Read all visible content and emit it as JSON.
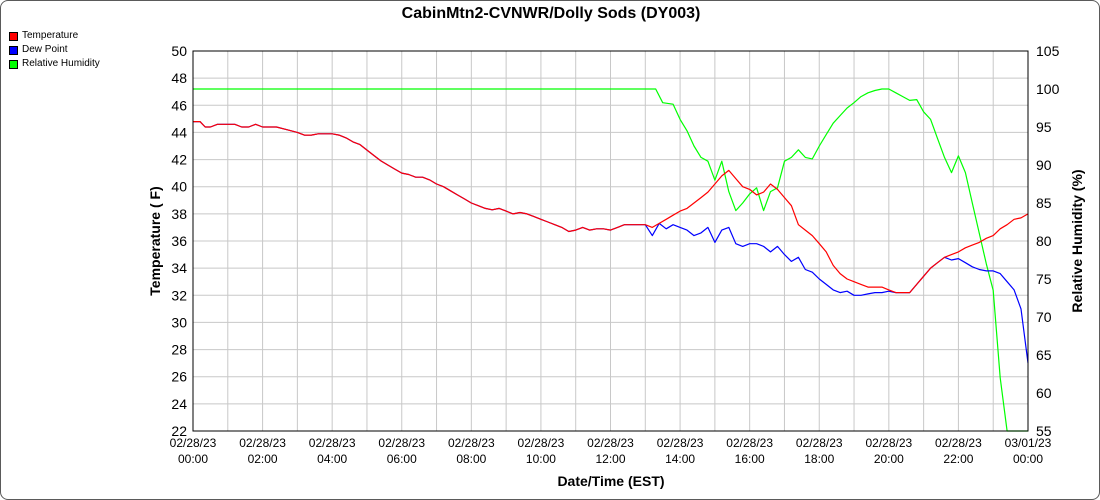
{
  "chart_data": {
    "type": "line",
    "title": "CabinMtn2-CVNWR/Dolly Sods (DY003)",
    "xlabel": "Date/Time (EST)",
    "ylabel_left": "Temperature ( F)",
    "ylabel_right": "Relative Humidity (%)",
    "ylim_left": [
      22,
      50
    ],
    "ylim_right": [
      55,
      105
    ],
    "yticks_left": [
      22,
      24,
      26,
      28,
      30,
      32,
      34,
      36,
      38,
      40,
      42,
      44,
      46,
      48,
      50
    ],
    "yticks_right": [
      55,
      60,
      65,
      70,
      75,
      80,
      85,
      90,
      95,
      100,
      105
    ],
    "grid": true,
    "legend_position": "top-left",
    "x_range_hours": [
      0,
      24
    ],
    "x_tick_labels": [
      [
        "02/28/23",
        "00:00"
      ],
      [
        "02/28/23",
        "02:00"
      ],
      [
        "02/28/23",
        "04:00"
      ],
      [
        "02/28/23",
        "06:00"
      ],
      [
        "02/28/23",
        "08:00"
      ],
      [
        "02/28/23",
        "10:00"
      ],
      [
        "02/28/23",
        "12:00"
      ],
      [
        "02/28/23",
        "14:00"
      ],
      [
        "02/28/23",
        "16:00"
      ],
      [
        "02/28/23",
        "18:00"
      ],
      [
        "02/28/23",
        "20:00"
      ],
      [
        "02/28/23",
        "22:00"
      ],
      [
        "03/01/23",
        "00:00"
      ]
    ],
    "series": [
      {
        "name": "Temperature",
        "color": "#ff0000",
        "axis": "left",
        "x": [
          0.0,
          0.2,
          0.35,
          0.5,
          0.7,
          1.0,
          1.2,
          1.4,
          1.6,
          1.8,
          2.0,
          2.2,
          2.4,
          2.7,
          3.0,
          3.2,
          3.4,
          3.6,
          3.8,
          4.0,
          4.2,
          4.4,
          4.6,
          4.8,
          5.0,
          5.2,
          5.4,
          5.6,
          5.8,
          6.0,
          6.2,
          6.4,
          6.6,
          6.8,
          7.0,
          7.2,
          7.4,
          7.6,
          7.8,
          8.0,
          8.2,
          8.4,
          8.6,
          8.8,
          9.0,
          9.2,
          9.4,
          9.6,
          9.8,
          10.0,
          10.2,
          10.4,
          10.6,
          10.8,
          11.0,
          11.2,
          11.4,
          11.6,
          11.8,
          12.0,
          12.2,
          12.4,
          12.6,
          12.8,
          13.0,
          13.2,
          13.4,
          13.6,
          13.8,
          14.0,
          14.2,
          14.4,
          14.6,
          14.8,
          15.0,
          15.2,
          15.4,
          15.6,
          15.8,
          16.0,
          16.2,
          16.4,
          16.6,
          16.8,
          17.0,
          17.2,
          17.4,
          17.6,
          17.8,
          18.0,
          18.2,
          18.4,
          18.6,
          18.8,
          19.0,
          19.2,
          19.4,
          19.6,
          19.8,
          20.0,
          20.2,
          20.4,
          20.6,
          20.8,
          21.0,
          21.2,
          21.4,
          21.6,
          21.8,
          22.0,
          22.2,
          22.4,
          22.6,
          22.8,
          23.0,
          23.2,
          23.4,
          23.6,
          23.8,
          24.0
        ],
        "values": [
          44.8,
          44.8,
          44.4,
          44.4,
          44.6,
          44.6,
          44.6,
          44.4,
          44.4,
          44.6,
          44.4,
          44.4,
          44.4,
          44.2,
          44.0,
          43.8,
          43.8,
          43.9,
          43.9,
          43.9,
          43.8,
          43.6,
          43.3,
          43.1,
          42.7,
          42.3,
          41.9,
          41.6,
          41.3,
          41.0,
          40.9,
          40.7,
          40.7,
          40.5,
          40.2,
          40.0,
          39.7,
          39.4,
          39.1,
          38.8,
          38.6,
          38.4,
          38.3,
          38.4,
          38.2,
          38.0,
          38.1,
          38.0,
          37.8,
          37.6,
          37.4,
          37.2,
          37.0,
          36.7,
          36.8,
          37.0,
          36.8,
          36.9,
          36.9,
          36.8,
          37.0,
          37.2,
          37.2,
          37.2,
          37.2,
          37.0,
          37.3,
          37.6,
          37.9,
          38.2,
          38.4,
          38.8,
          39.2,
          39.6,
          40.2,
          40.8,
          41.2,
          40.6,
          40.0,
          39.8,
          39.4,
          39.6,
          40.2,
          39.8,
          39.2,
          38.6,
          37.2,
          36.8,
          36.4,
          35.8,
          35.2,
          34.2,
          33.6,
          33.2,
          33.0,
          32.8,
          32.6,
          32.6,
          32.6,
          32.4,
          32.2,
          32.2,
          32.2,
          32.8,
          33.4,
          34.0,
          34.4,
          34.8,
          35.0,
          35.2,
          35.5,
          35.7,
          35.9,
          36.2,
          36.4,
          36.9,
          37.2,
          37.6,
          37.7,
          38.0
        ]
      },
      {
        "name": "Dew Point",
        "color": "#0000ff",
        "axis": "left",
        "x": [
          0.0,
          0.2,
          0.35,
          0.5,
          0.7,
          1.0,
          1.2,
          1.4,
          1.6,
          1.8,
          2.0,
          2.2,
          2.4,
          2.7,
          3.0,
          3.2,
          3.4,
          3.6,
          3.8,
          4.0,
          4.2,
          4.4,
          4.6,
          4.8,
          5.0,
          5.2,
          5.4,
          5.6,
          5.8,
          6.0,
          6.2,
          6.4,
          6.6,
          6.8,
          7.0,
          7.2,
          7.4,
          7.6,
          7.8,
          8.0,
          8.2,
          8.4,
          8.6,
          8.8,
          9.0,
          9.2,
          9.4,
          9.6,
          9.8,
          10.0,
          10.2,
          10.4,
          10.6,
          10.8,
          11.0,
          11.2,
          11.4,
          11.6,
          11.8,
          12.0,
          12.2,
          12.4,
          12.6,
          12.8,
          13.0,
          13.2,
          13.4,
          13.6,
          13.8,
          14.0,
          14.2,
          14.4,
          14.6,
          14.8,
          15.0,
          15.2,
          15.4,
          15.6,
          15.8,
          16.0,
          16.2,
          16.4,
          16.6,
          16.8,
          17.0,
          17.2,
          17.4,
          17.6,
          17.8,
          18.0,
          18.2,
          18.4,
          18.6,
          18.8,
          19.0,
          19.2,
          19.4,
          19.6,
          19.8,
          20.0,
          20.2,
          20.4,
          20.6,
          20.8,
          21.0,
          21.2,
          21.4,
          21.6,
          21.8,
          22.0,
          22.2,
          22.4,
          22.6,
          22.8,
          23.0,
          23.2,
          23.4,
          23.6,
          23.8,
          24.0
        ],
        "values": [
          44.8,
          44.8,
          44.4,
          44.4,
          44.6,
          44.6,
          44.6,
          44.4,
          44.4,
          44.6,
          44.4,
          44.4,
          44.4,
          44.2,
          44.0,
          43.8,
          43.8,
          43.9,
          43.9,
          43.9,
          43.8,
          43.6,
          43.3,
          43.1,
          42.7,
          42.3,
          41.9,
          41.6,
          41.3,
          41.0,
          40.9,
          40.7,
          40.7,
          40.5,
          40.2,
          40.0,
          39.7,
          39.4,
          39.1,
          38.8,
          38.6,
          38.4,
          38.3,
          38.4,
          38.2,
          38.0,
          38.1,
          38.0,
          37.8,
          37.6,
          37.4,
          37.2,
          37.0,
          36.7,
          36.8,
          37.0,
          36.8,
          36.9,
          36.9,
          36.8,
          37.0,
          37.2,
          37.2,
          37.2,
          37.2,
          36.4,
          37.3,
          36.9,
          37.2,
          37.0,
          36.8,
          36.4,
          36.6,
          37.0,
          35.9,
          36.8,
          37.0,
          35.8,
          35.6,
          35.8,
          35.8,
          35.6,
          35.2,
          35.6,
          35.0,
          34.5,
          34.8,
          33.9,
          33.7,
          33.2,
          32.8,
          32.4,
          32.2,
          32.3,
          32.0,
          32.0,
          32.1,
          32.2,
          32.2,
          32.3,
          32.2,
          32.2,
          32.2,
          32.8,
          33.4,
          34.0,
          34.4,
          34.8,
          34.6,
          34.7,
          34.4,
          34.1,
          33.9,
          33.8,
          33.8,
          33.6,
          33.0,
          32.4,
          31.0,
          27.0
        ]
      },
      {
        "name": "Relative Humidity",
        "color": "#00ff00",
        "axis": "right",
        "x": [
          0.0,
          1.0,
          2.0,
          3.0,
          4.0,
          5.0,
          6.0,
          7.0,
          8.0,
          9.0,
          10.0,
          11.0,
          12.0,
          13.0,
          13.3,
          13.5,
          13.8,
          14.0,
          14.2,
          14.4,
          14.6,
          14.8,
          15.0,
          15.2,
          15.4,
          15.6,
          15.8,
          16.0,
          16.2,
          16.4,
          16.6,
          16.8,
          17.0,
          17.2,
          17.4,
          17.6,
          17.8,
          18.0,
          18.2,
          18.4,
          18.6,
          18.8,
          19.0,
          19.2,
          19.4,
          19.6,
          19.8,
          20.0,
          20.2,
          20.4,
          20.6,
          20.8,
          21.0,
          21.2,
          21.4,
          21.6,
          21.8,
          22.0,
          22.2,
          22.4,
          22.6,
          22.8,
          23.0,
          23.2,
          23.4,
          23.6,
          23.8,
          24.0
        ],
        "values": [
          100,
          100,
          100,
          100,
          100,
          100,
          100,
          100,
          100,
          100,
          100,
          100,
          100,
          100,
          100,
          98.2,
          98.0,
          96.0,
          94.5,
          92.5,
          91.0,
          90.5,
          88.0,
          90.5,
          86.5,
          84.0,
          85.0,
          86.2,
          87.0,
          84.0,
          86.5,
          87.0,
          90.5,
          91.0,
          92.0,
          91.0,
          90.8,
          92.5,
          94.0,
          95.5,
          96.5,
          97.5,
          98.2,
          99.0,
          99.5,
          99.8,
          100.0,
          100.0,
          99.5,
          99.0,
          98.5,
          98.6,
          97.0,
          96.0,
          93.5,
          91.0,
          89.0,
          91.2,
          89.0,
          85.0,
          81.0,
          77.0,
          73.5,
          62.0,
          55.0,
          55.0,
          55.0,
          55.0
        ]
      }
    ]
  }
}
